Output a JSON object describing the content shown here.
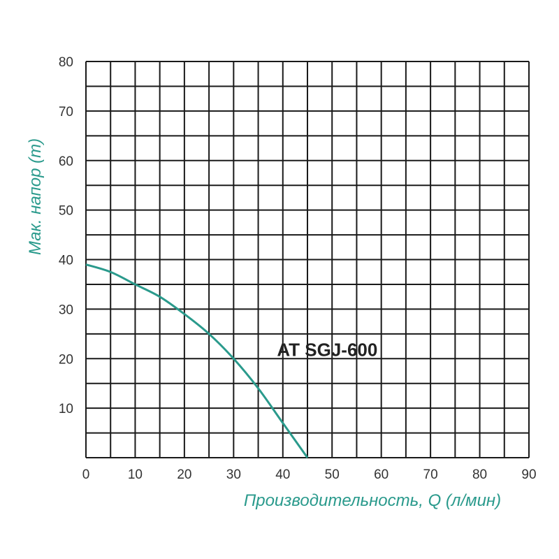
{
  "chart_data": {
    "type": "line",
    "xlabel": "Производительность, Q (л/мин)",
    "ylabel": "Мак. напор (m)",
    "xlim": [
      0,
      90
    ],
    "ylim": [
      0,
      80
    ],
    "x_ticks": [
      0,
      10,
      20,
      30,
      40,
      50,
      60,
      70,
      80,
      90
    ],
    "y_ticks": [
      10,
      20,
      30,
      40,
      50,
      60,
      70,
      80
    ],
    "grid": true,
    "grid_step_x": 5,
    "grid_step_y": 5,
    "series": [
      {
        "name": "AT SGJ-600",
        "color": "#2a9a8c",
        "x": [
          0,
          5,
          10,
          15,
          20,
          25,
          30,
          35,
          40,
          45
        ],
        "y": [
          39,
          37.5,
          35,
          32.5,
          29,
          25,
          20,
          14,
          7,
          0
        ]
      }
    ],
    "colors": {
      "accent": "#2a9a8c",
      "grid": "#1a1a1a"
    }
  }
}
